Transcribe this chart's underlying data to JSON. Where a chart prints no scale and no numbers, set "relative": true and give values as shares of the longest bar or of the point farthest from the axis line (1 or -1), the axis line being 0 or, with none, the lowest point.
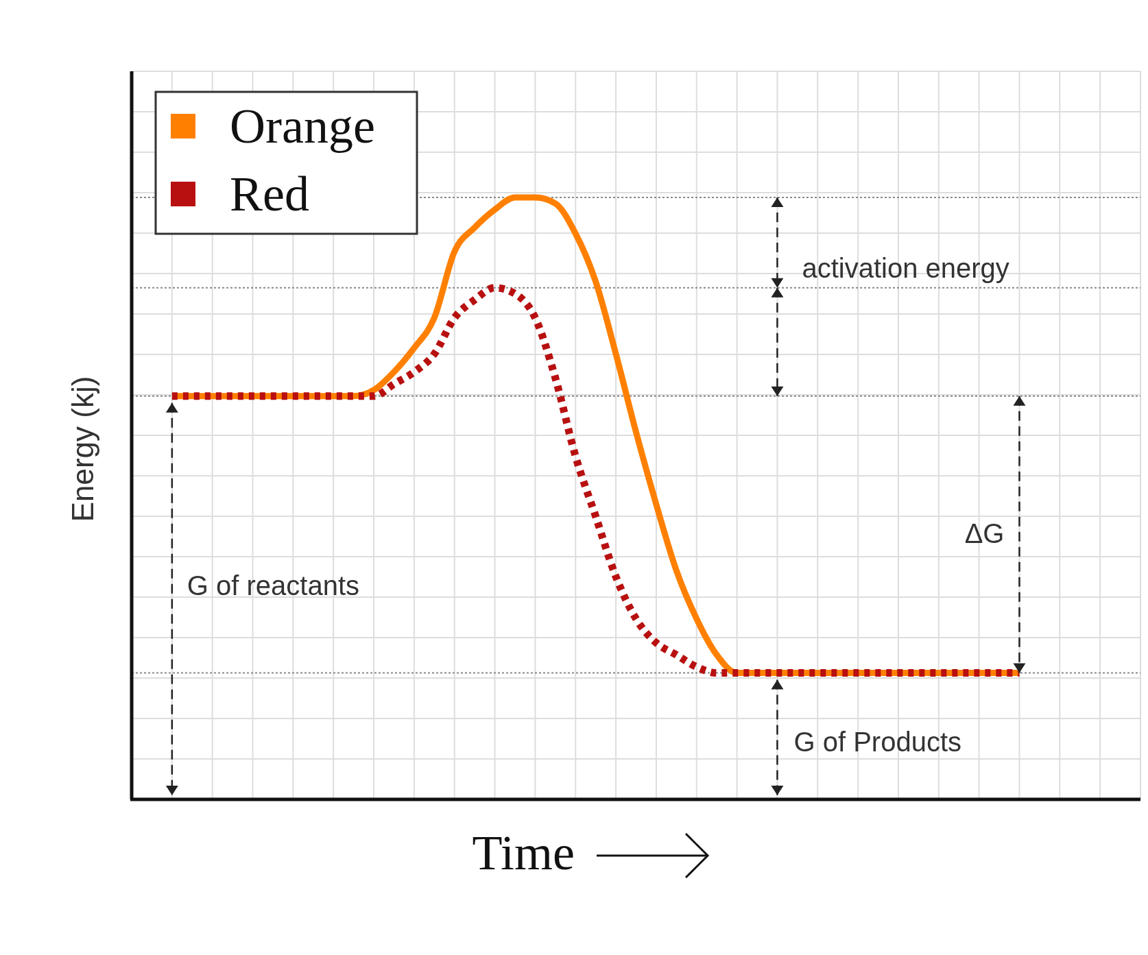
{
  "chart_data": {
    "type": "line",
    "relative": true,
    "xlabel": "Time",
    "ylabel": "Energy (kj)",
    "legend": "top left",
    "grid": true,
    "marker": "none",
    "categories": [
      null,
      null,
      null,
      null,
      null,
      null,
      null,
      null,
      null,
      null,
      null,
      null,
      null,
      null,
      null,
      null,
      null,
      null,
      null,
      null,
      null,
      null,
      null,
      null,
      null,
      null,
      null,
      null,
      null,
      null,
      null,
      null,
      null,
      null,
      null,
      null,
      null,
      null,
      null,
      null,
      null,
      null,
      null,
      null,
      null,
      null,
      null,
      null,
      null,
      null,
      null
    ],
    "series": [
      {
        "name": "Orange",
        "color": "#ff8000",
        "line_style": "solid",
        "values": [
          null,
          null,
          0.67,
          0.67,
          0.67,
          0.67,
          0.67,
          0.67,
          0.67,
          0.67,
          0.67,
          0.67,
          0.68,
          0.71,
          0.75,
          0.8,
          0.91,
          0.95,
          0.98,
          1,
          1,
          0.99,
          0.94,
          0.86,
          0.74,
          0.61,
          0.49,
          0.38,
          0.3,
          0.24,
          0.21,
          0.21,
          0.21,
          0.21,
          0.21,
          0.21,
          0.21,
          0.21,
          0.21,
          0.21,
          0.21,
          0.21,
          0.21,
          0.21,
          0.21,
          null,
          null,
          null,
          null,
          null,
          null
        ]
      },
      {
        "name": "Red",
        "color": "#b81010",
        "line_style": "dotted",
        "values": [
          null,
          null,
          0.67,
          0.67,
          0.67,
          0.67,
          0.67,
          0.67,
          0.67,
          0.67,
          0.67,
          0.67,
          0.67,
          0.69,
          0.71,
          0.74,
          0.8,
          0.83,
          0.85,
          0.84,
          0.8,
          0.7,
          0.57,
          0.47,
          0.37,
          0.3,
          0.26,
          0.24,
          0.22,
          0.21,
          0.21,
          0.21,
          0.21,
          0.21,
          0.21,
          0.21,
          0.21,
          0.21,
          0.21,
          0.21,
          0.21,
          0.21,
          0.21,
          0.21,
          0.21,
          null,
          null,
          null,
          null,
          null,
          null
        ]
      }
    ],
    "ref_lines": [
      {
        "axis": "y",
        "value": 1,
        "color": "#888888",
        "line_style": "dotted"
      },
      {
        "axis": "y",
        "value": 0.85,
        "color": "#888888",
        "line_style": "dotted"
      },
      {
        "axis": "y",
        "value": 0.67,
        "color": "#888888",
        "line_style": "dotted"
      },
      {
        "axis": "y",
        "value": 0.21,
        "color": "#888888",
        "line_style": "dotted"
      }
    ],
    "annotations": [
      "activation energy",
      "ΔG",
      "G of reactants",
      "G of Products"
    ]
  }
}
